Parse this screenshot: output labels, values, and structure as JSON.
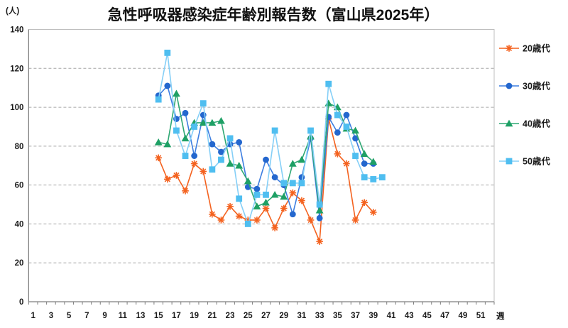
{
  "title": "急性呼吸器感染症年齢別報告数（富山県2025年）",
  "y_axis_unit": "(人)",
  "x_axis_unit": "週",
  "chart_data": {
    "type": "line",
    "title": "急性呼吸器感染症年齢別報告数（富山県2025年）",
    "ylabel": "(人)",
    "xlabel": "週",
    "ylim": [
      0,
      140
    ],
    "y_tick_step": 20,
    "x_range_weeks": [
      1,
      52
    ],
    "x_tick_labels": [
      1,
      3,
      5,
      7,
      9,
      11,
      13,
      15,
      17,
      19,
      21,
      23,
      25,
      27,
      29,
      31,
      33,
      35,
      37,
      39,
      41,
      43,
      45,
      47,
      49,
      51
    ],
    "grid": "horizontal-dashed",
    "legend_position": "right",
    "series": [
      {
        "name": "20歳代",
        "marker": "asterisk",
        "color": "#F4621F",
        "start_week": 15,
        "values": [
          74,
          63,
          65,
          57,
          71,
          67,
          45,
          42,
          49,
          44,
          42,
          42,
          48,
          38,
          48,
          56,
          52,
          42,
          31,
          94,
          76,
          71,
          42,
          51,
          46
        ]
      },
      {
        "name": "30歳代",
        "marker": "circle",
        "color": "#2467CE",
        "line_color": "#3D7EE0",
        "start_week": 15,
        "values": [
          106,
          111,
          94,
          97,
          75,
          96,
          81,
          77,
          81,
          82,
          59,
          58,
          73,
          64,
          60,
          45,
          64,
          84,
          43,
          95,
          87,
          96,
          84,
          71,
          71
        ]
      },
      {
        "name": "40歳代",
        "marker": "triangle",
        "color": "#1EA065",
        "line_color": "#2FA874",
        "start_week": 15,
        "values": [
          82,
          81,
          107,
          84,
          92,
          92,
          92,
          93,
          71,
          70,
          62,
          49,
          51,
          55,
          54,
          71,
          73,
          85,
          47,
          102,
          100,
          89,
          88,
          76,
          72
        ]
      },
      {
        "name": "50歳代",
        "marker": "square",
        "color": "#4FBEF0",
        "line_color": "#85CFF7",
        "start_week": 15,
        "values": [
          104,
          128,
          88,
          75,
          90,
          102,
          68,
          73,
          84,
          53,
          40,
          55,
          55,
          88,
          61,
          61,
          61,
          88,
          50,
          112,
          96,
          90,
          75,
          64,
          63,
          64
        ]
      }
    ]
  }
}
